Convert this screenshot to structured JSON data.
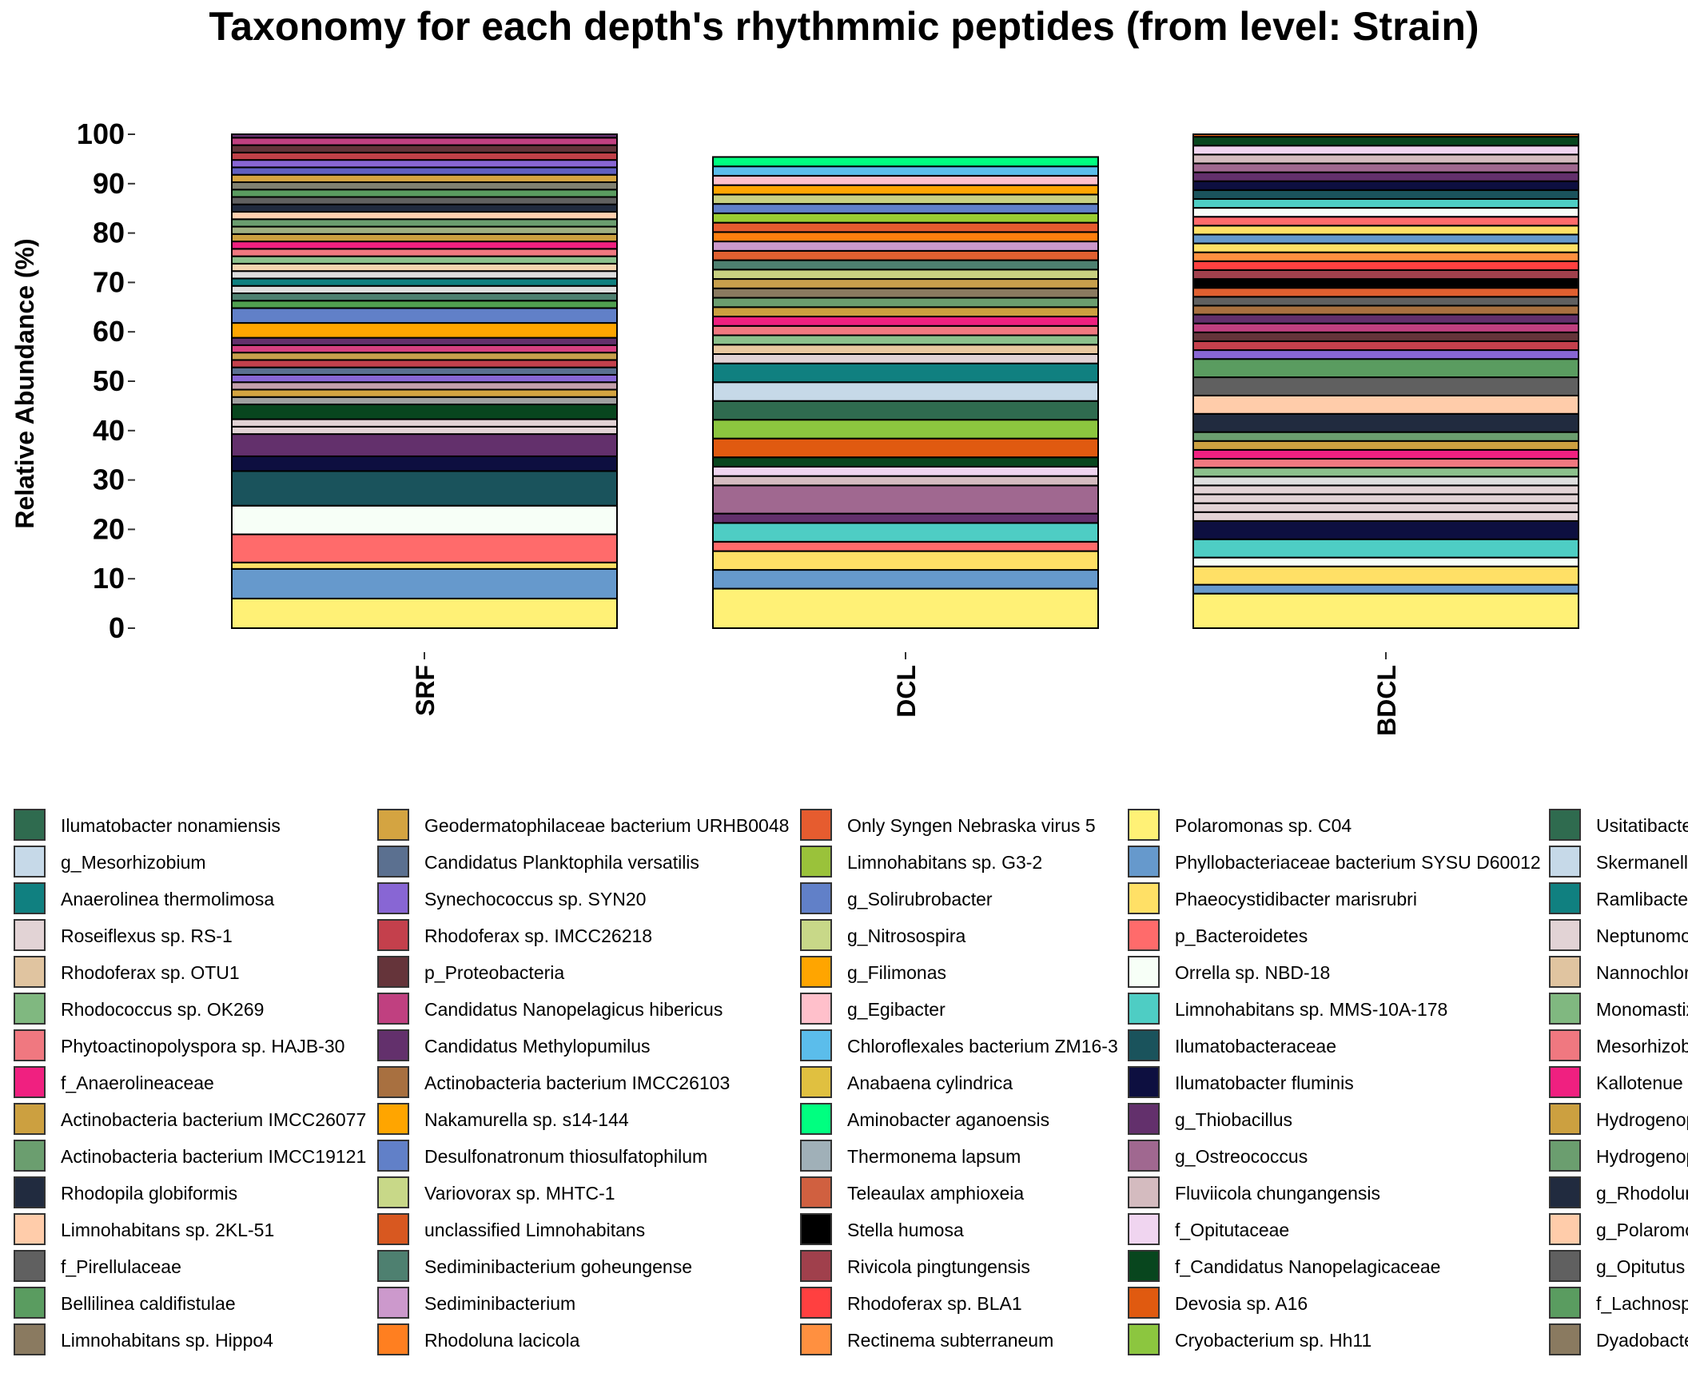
{
  "chart_data": {
    "type": "bar",
    "stacked": true,
    "title": "Taxonomy for each depth's rhythmmic peptides (from level: Strain)",
    "ylabel": "Relative Abundance (%)",
    "xlabel": "",
    "ylim": [
      0,
      100
    ],
    "yticks": [
      0,
      10,
      20,
      30,
      40,
      50,
      60,
      70,
      80,
      90,
      100
    ],
    "categories": [
      "SRF",
      "DCL",
      "BDCL"
    ],
    "bars": [
      {
        "category": "SRF",
        "segments": [
          {
            "value": 6.0,
            "color": "#FFF176"
          },
          {
            "value": 6.0,
            "color": "#6699CC"
          },
          {
            "value": 1.3,
            "color": "#FFE066"
          },
          {
            "value": 5.7,
            "color": "#FF6B6B"
          },
          {
            "value": 5.8,
            "color": "#F7FFF7"
          },
          {
            "value": 7.0,
            "color": "#1A535C"
          },
          {
            "value": 3.0,
            "color": "#0D0F40"
          },
          {
            "value": 4.5,
            "color": "#63306C"
          },
          {
            "value": 1.5,
            "color": "#E2D3D5"
          },
          {
            "value": 1.5,
            "color": "#E2D3D5"
          },
          {
            "value": 3.0,
            "color": "#08461E"
          },
          {
            "value": 1.5,
            "color": "#A0A0A0"
          },
          {
            "value": 1.5,
            "color": "#D4A441"
          },
          {
            "value": 1.5,
            "color": "#C4A0AC"
          },
          {
            "value": 1.5,
            "color": "#8866D4"
          },
          {
            "value": 1.5,
            "color": "#5B7090"
          },
          {
            "value": 1.5,
            "color": "#C4404C"
          },
          {
            "value": 1.5,
            "color": "#C8A04C"
          },
          {
            "value": 1.5,
            "color": "#D44080"
          },
          {
            "value": 1.5,
            "color": "#63306C"
          },
          {
            "value": 3.0,
            "color": "#FFA500"
          },
          {
            "value": 3.0,
            "color": "#6180C8"
          },
          {
            "value": 1.5,
            "color": "#50A050"
          },
          {
            "value": 1.5,
            "color": "#4E8070"
          },
          {
            "value": 1.5,
            "color": "#DEDEDE"
          },
          {
            "value": 1.5,
            "color": "#108080"
          },
          {
            "value": 1.5,
            "color": "#DEDEDE"
          },
          {
            "value": 1.5,
            "color": "#F5D5B0"
          },
          {
            "value": 1.5,
            "color": "#8CC08C"
          },
          {
            "value": 1.5,
            "color": "#F07880"
          },
          {
            "value": 1.5,
            "color": "#F02080"
          },
          {
            "value": 1.5,
            "color": "#CCA040"
          },
          {
            "value": 1.5,
            "color": "#A0B080"
          },
          {
            "value": 1.5,
            "color": "#6B9E6F"
          },
          {
            "value": 1.5,
            "color": "#FFD0B0"
          },
          {
            "value": 1.5,
            "color": "#212B3F"
          },
          {
            "value": 1.5,
            "color": "#606060"
          },
          {
            "value": 1.5,
            "color": "#5A9C60"
          },
          {
            "value": 1.5,
            "color": "#808070"
          },
          {
            "value": 1.5,
            "color": "#D4A441"
          },
          {
            "value": 1.5,
            "color": "#6060C0"
          },
          {
            "value": 1.5,
            "color": "#8866D4"
          },
          {
            "value": 1.5,
            "color": "#C04048"
          },
          {
            "value": 1.5,
            "color": "#65343A"
          },
          {
            "value": 1.5,
            "color": "#C04080"
          },
          {
            "value": 1.5,
            "color": "#63306C"
          },
          {
            "value": 1.5,
            "color": "#A87040"
          },
          {
            "value": 1.2,
            "color": "#E06030"
          },
          {
            "value": 1.0,
            "color": "#C8D080"
          }
        ]
      },
      {
        "category": "DCL",
        "segments": [
          {
            "value": 8.0,
            "color": "#FFF176"
          },
          {
            "value": 3.8,
            "color": "#6699CC"
          },
          {
            "value": 3.8,
            "color": "#FFE066"
          },
          {
            "value": 1.9,
            "color": "#FF6B6B"
          },
          {
            "value": 3.8,
            "color": "#4ECDC4"
          },
          {
            "value": 1.9,
            "color": "#63306C"
          },
          {
            "value": 5.7,
            "color": "#A06890"
          },
          {
            "value": 1.9,
            "color": "#D4BBBF"
          },
          {
            "value": 1.9,
            "color": "#F0D5F0"
          },
          {
            "value": 1.9,
            "color": "#08461E"
          },
          {
            "value": 3.8,
            "color": "#E05A10"
          },
          {
            "value": 3.8,
            "color": "#8CC63F"
          },
          {
            "value": 3.8,
            "color": "#2F6B4F"
          },
          {
            "value": 3.8,
            "color": "#C6D9E8"
          },
          {
            "value": 3.8,
            "color": "#108080"
          },
          {
            "value": 1.9,
            "color": "#E2D3D5"
          },
          {
            "value": 1.9,
            "color": "#E8C8A0"
          },
          {
            "value": 1.9,
            "color": "#8CC08C"
          },
          {
            "value": 1.9,
            "color": "#F07880"
          },
          {
            "value": 1.9,
            "color": "#F02080"
          },
          {
            "value": 1.9,
            "color": "#CCA040"
          },
          {
            "value": 1.9,
            "color": "#6B9E6F"
          },
          {
            "value": 1.9,
            "color": "#8A7A60"
          },
          {
            "value": 1.9,
            "color": "#C8A04C"
          },
          {
            "value": 1.9,
            "color": "#C8D080"
          },
          {
            "value": 1.9,
            "color": "#4E8070"
          },
          {
            "value": 1.9,
            "color": "#E06030"
          },
          {
            "value": 1.9,
            "color": "#CC99CC"
          },
          {
            "value": 1.9,
            "color": "#FF7F0E"
          },
          {
            "value": 1.9,
            "color": "#E65C2F"
          },
          {
            "value": 1.9,
            "color": "#9ACD32"
          },
          {
            "value": 1.9,
            "color": "#6180C8"
          },
          {
            "value": 1.9,
            "color": "#C8D080"
          },
          {
            "value": 1.9,
            "color": "#FFA500"
          },
          {
            "value": 1.9,
            "color": "#FFC0CB"
          },
          {
            "value": 1.9,
            "color": "#5BBDEB"
          },
          {
            "value": 1.9,
            "color": "#00FF80"
          }
        ]
      },
      {
        "category": "BDCL",
        "segments": [
          {
            "value": 7.0,
            "color": "#FFF176"
          },
          {
            "value": 1.8,
            "color": "#6699CC"
          },
          {
            "value": 3.7,
            "color": "#FFE066"
          },
          {
            "value": 1.8,
            "color": "#F7FFF7"
          },
          {
            "value": 3.7,
            "color": "#4ECDC4"
          },
          {
            "value": 3.7,
            "color": "#0D0F40"
          },
          {
            "value": 1.8,
            "color": "#E2D3D5"
          },
          {
            "value": 1.8,
            "color": "#E2D3D5"
          },
          {
            "value": 1.8,
            "color": "#E2D3D5"
          },
          {
            "value": 1.8,
            "color": "#E2D3D5"
          },
          {
            "value": 1.8,
            "color": "#DEDEDE"
          },
          {
            "value": 1.8,
            "color": "#8CC08C"
          },
          {
            "value": 1.8,
            "color": "#F07880"
          },
          {
            "value": 1.8,
            "color": "#F02080"
          },
          {
            "value": 1.8,
            "color": "#CCA040"
          },
          {
            "value": 1.8,
            "color": "#6B9E6F"
          },
          {
            "value": 3.7,
            "color": "#212B3F"
          },
          {
            "value": 3.7,
            "color": "#FFCCAA"
          },
          {
            "value": 3.7,
            "color": "#606060"
          },
          {
            "value": 3.7,
            "color": "#5A9C60"
          },
          {
            "value": 1.8,
            "color": "#8866D4"
          },
          {
            "value": 1.8,
            "color": "#C4404C"
          },
          {
            "value": 1.8,
            "color": "#65343A"
          },
          {
            "value": 1.8,
            "color": "#C04080"
          },
          {
            "value": 1.8,
            "color": "#63306C"
          },
          {
            "value": 1.8,
            "color": "#A87040"
          },
          {
            "value": 1.8,
            "color": "#606060"
          },
          {
            "value": 1.8,
            "color": "#E06030"
          },
          {
            "value": 1.8,
            "color": "#000000"
          },
          {
            "value": 1.8,
            "color": "#A0404C"
          },
          {
            "value": 1.8,
            "color": "#FF4040"
          },
          {
            "value": 1.8,
            "color": "#FF9040"
          },
          {
            "value": 1.8,
            "color": "#FFE066"
          },
          {
            "value": 1.8,
            "color": "#6699CC"
          },
          {
            "value": 1.8,
            "color": "#FFE066"
          },
          {
            "value": 1.8,
            "color": "#FF6B6B"
          },
          {
            "value": 1.8,
            "color": "#F7FFF7"
          },
          {
            "value": 1.8,
            "color": "#4ECDC4"
          },
          {
            "value": 1.8,
            "color": "#1A535C"
          },
          {
            "value": 1.8,
            "color": "#0D0F40"
          },
          {
            "value": 1.8,
            "color": "#63306C"
          },
          {
            "value": 1.8,
            "color": "#A06890"
          },
          {
            "value": 1.8,
            "color": "#D4BBBF"
          },
          {
            "value": 1.8,
            "color": "#F0D5F0"
          },
          {
            "value": 1.8,
            "color": "#08461E"
          },
          {
            "value": 1.8,
            "color": "#E05A10"
          },
          {
            "value": 1.4,
            "color": "#8CC63F"
          }
        ]
      }
    ],
    "legend": {
      "placement": "bottom",
      "columns": [
        [
          {
            "label": "Ilumatobacter nonamiensis",
            "color": "#2F6B4F"
          },
          {
            "label": "g_Mesorhizobium",
            "color": "#C6D9E8"
          },
          {
            "label": "Anaerolinea thermolimosa",
            "color": "#108080"
          },
          {
            "label": "Roseiflexus sp. RS-1",
            "color": "#E2D3D5"
          },
          {
            "label": "Rhodoferax sp. OTU1",
            "color": "#E0C4A0"
          },
          {
            "label": "Rhodococcus sp. OK269",
            "color": "#80B880"
          },
          {
            "label": "Phytoactinopolyspora sp. HAJB-30",
            "color": "#F07880"
          },
          {
            "label": "f_Anaerolineaceae",
            "color": "#F02080"
          },
          {
            "label": "Actinobacteria bacterium IMCC26077",
            "color": "#CCA040"
          },
          {
            "label": "Actinobacteria bacterium IMCC19121",
            "color": "#6B9E6F"
          },
          {
            "label": "Rhodopila globiformis",
            "color": "#212B3F"
          },
          {
            "label": "Limnohabitans sp. 2KL-51",
            "color": "#FFCCAA"
          },
          {
            "label": "f_Pirellulaceae",
            "color": "#606060"
          },
          {
            "label": "Bellilinea caldifistulae",
            "color": "#5A9C60"
          },
          {
            "label": "Limnohabitans sp. Hippo4",
            "color": "#8A7A60"
          }
        ],
        [
          {
            "label": "Geodermatophilaceae bacterium URHB0048",
            "color": "#D4A441"
          },
          {
            "label": "Candidatus Planktophila versatilis",
            "color": "#5B7090"
          },
          {
            "label": "Synechococcus sp. SYN20",
            "color": "#8866D4"
          },
          {
            "label": "Rhodoferax sp. IMCC26218",
            "color": "#C4404C"
          },
          {
            "label": "p_Proteobacteria",
            "color": "#65343A"
          },
          {
            "label": "Candidatus Nanopelagicus hibericus",
            "color": "#C04080"
          },
          {
            "label": "Candidatus Methylopumilus",
            "color": "#63306C"
          },
          {
            "label": "Actinobacteria bacterium IMCC26103",
            "color": "#A87040"
          },
          {
            "label": "Nakamurella sp. s14-144",
            "color": "#FFA500"
          },
          {
            "label": "Desulfonatronum thiosulfatophilum",
            "color": "#6180C8"
          },
          {
            "label": "Variovorax sp. MHTC-1",
            "color": "#C8D888"
          },
          {
            "label": "unclassified Limnohabitans",
            "color": "#D85820"
          },
          {
            "label": "Sediminibacterium goheungense",
            "color": "#4E8070"
          },
          {
            "label": "Sediminibacterium",
            "color": "#CC99CC"
          },
          {
            "label": "Rhodoluna lacicola",
            "color": "#FF7F20"
          }
        ],
        [
          {
            "label": "Only Syngen Nebraska virus 5",
            "color": "#E65C2F"
          },
          {
            "label": "Limnohabitans sp. G3-2",
            "color": "#9AC23A"
          },
          {
            "label": "g_Solirubrobacter",
            "color": "#6180C8"
          },
          {
            "label": "g_Nitrosospira",
            "color": "#C8D888"
          },
          {
            "label": "g_Filimonas",
            "color": "#FFA500"
          },
          {
            "label": "g_Egibacter",
            "color": "#FFC0CB"
          },
          {
            "label": "Chloroflexales bacterium ZM16-3",
            "color": "#5BBDEB"
          },
          {
            "label": "Anabaena cylindrica",
            "color": "#E0C040"
          },
          {
            "label": "Aminobacter aganoensis",
            "color": "#00FF80"
          },
          {
            "label": "Thermonema lapsum",
            "color": "#A0B0B8"
          },
          {
            "label": "Teleaulax amphioxeia",
            "color": "#D06040"
          },
          {
            "label": "Stella humosa",
            "color": "#000000"
          },
          {
            "label": "Rivicola pingtungensis",
            "color": "#A0404C"
          },
          {
            "label": "Rhodoferax sp. BLA1",
            "color": "#FF4040"
          },
          {
            "label": "Rectinema subterraneum",
            "color": "#FF9040"
          }
        ],
        [
          {
            "label": "Polaromonas sp. C04",
            "color": "#FFF176"
          },
          {
            "label": "Phyllobacteriaceae bacterium SYSU D60012",
            "color": "#6699CC"
          },
          {
            "label": "Phaeocystidibacter marisrubri",
            "color": "#FFE066"
          },
          {
            "label": "p_Bacteroidetes",
            "color": "#FF6B6B"
          },
          {
            "label": "Orrella sp. NBD-18",
            "color": "#F7FFF7"
          },
          {
            "label": "Limnohabitans sp. MMS-10A-178",
            "color": "#4ECDC4"
          },
          {
            "label": "Ilumatobacteraceae",
            "color": "#1A535C"
          },
          {
            "label": "Ilumatobacter fluminis",
            "color": "#0D0F40"
          },
          {
            "label": "g_Thiobacillus",
            "color": "#63306C"
          },
          {
            "label": "g_Ostreococcus",
            "color": "#A06890"
          },
          {
            "label": "Fluviicola chungangensis",
            "color": "#D4BBBF"
          },
          {
            "label": "f_Opitutaceae",
            "color": "#F0D5F0"
          },
          {
            "label": "f_Candidatus Nanopelagicaceae",
            "color": "#08461E"
          },
          {
            "label": "Devosia sp. A16",
            "color": "#E05A10"
          },
          {
            "label": "Cryobacterium sp. Hh11",
            "color": "#8CC63F"
          }
        ],
        [
          {
            "label": "Usitatibacte",
            "color": "#2F6B4F"
          },
          {
            "label": "Skermanella",
            "color": "#C6D9E8"
          },
          {
            "label": "Ramlibacter",
            "color": "#108080"
          },
          {
            "label": "Neptunomo",
            "color": "#E2D3D5"
          },
          {
            "label": "Nannochlor",
            "color": "#E0C4A0"
          },
          {
            "label": "Monomastix",
            "color": "#80B880"
          },
          {
            "label": "Mesorhizob",
            "color": "#F07880"
          },
          {
            "label": "Kallotenue s",
            "color": "#F02080"
          },
          {
            "label": "Hydrogenop",
            "color": "#CCA040"
          },
          {
            "label": "Hydrogenop",
            "color": "#6B9E6F"
          },
          {
            "label": "g_Rhodolun",
            "color": "#212B3F"
          },
          {
            "label": "g_Polaromo",
            "color": "#FFCCAA"
          },
          {
            "label": "g_Opitutus",
            "color": "#606060"
          },
          {
            "label": "f_Lachnosp",
            "color": "#5A9C60"
          },
          {
            "label": "Dyadobacte",
            "color": "#8A7A60"
          }
        ]
      ]
    }
  }
}
